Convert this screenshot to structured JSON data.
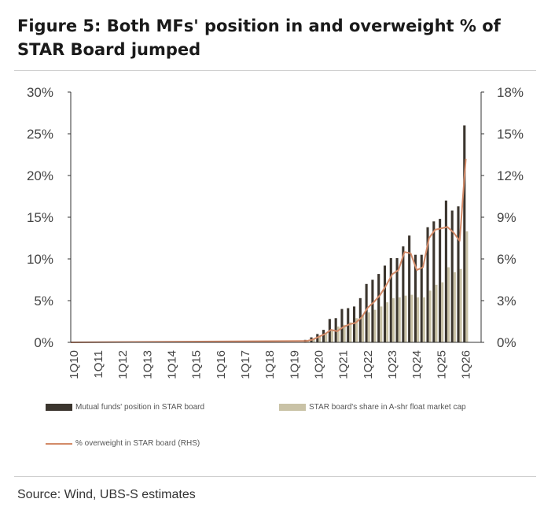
{
  "figure": {
    "title": "Figure 5: Both MFs' position in and overweight % of STAR Board jumped",
    "source": "Source: Wind, UBS-S estimates"
  },
  "colors": {
    "mf_bar": "#3b352e",
    "star_bar": "#c9c2a6",
    "overweight_line": "#d38a68",
    "axis": "#333333"
  },
  "legend": {
    "mf": "Mutual funds' position in STAR board",
    "star": "STAR board's share in A-shr float market cap",
    "overweight": "% overweight in STAR board (RHS)"
  },
  "chart_data": {
    "type": "bar",
    "legend_position": "bottom",
    "grid": false,
    "y_left": {
      "ylim": [
        0,
        30
      ],
      "ticks": [
        "0%",
        "5%",
        "10%",
        "15%",
        "20%",
        "25%",
        "30%"
      ]
    },
    "y_right": {
      "ylim": [
        0,
        18
      ],
      "ticks": [
        "0%",
        "3%",
        "6%",
        "9%",
        "12%",
        "15%",
        "18%"
      ]
    },
    "x_tick_labels": [
      "1Q10",
      "1Q11",
      "1Q12",
      "1Q13",
      "1Q14",
      "1Q15",
      "1Q16",
      "1Q17",
      "1Q18",
      "1Q19",
      "1Q20",
      "1Q21",
      "1Q22",
      "1Q23",
      "1Q24",
      "1Q25",
      "1Q26"
    ],
    "categories": [
      "3Q19",
      "4Q19",
      "1Q20",
      "2Q20",
      "3Q20",
      "4Q20",
      "1Q21",
      "2Q21",
      "3Q21",
      "4Q21",
      "1Q22",
      "2Q22",
      "3Q22",
      "4Q22",
      "1Q23",
      "2Q23",
      "3Q23",
      "4Q23",
      "1Q24",
      "2Q24",
      "3Q24",
      "4Q24",
      "1Q25",
      "2Q25",
      "3Q25",
      "4Q25",
      "1Q26"
    ],
    "series": [
      {
        "name": "Mutual funds' position in STAR board",
        "axis": "left",
        "type": "bar",
        "values": [
          0.3,
          0.6,
          1.0,
          1.5,
          2.8,
          2.9,
          4.0,
          4.1,
          4.3,
          5.3,
          7.0,
          7.5,
          8.2,
          9.2,
          10.1,
          10.1,
          11.5,
          12.8,
          10.5,
          10.5,
          13.8,
          14.5,
          14.8,
          17.0,
          15.8,
          16.3,
          26.0
        ]
      },
      {
        "name": "STAR board's share in A-shr float market cap",
        "axis": "left",
        "type": "bar",
        "values": [
          0.2,
          0.4,
          0.7,
          1.1,
          1.5,
          1.9,
          2.1,
          2.4,
          2.9,
          3.3,
          3.6,
          3.9,
          4.3,
          4.8,
          5.3,
          5.4,
          5.6,
          5.7,
          5.4,
          5.4,
          6.2,
          6.9,
          7.2,
          9.0,
          8.4,
          8.8,
          13.3
        ]
      },
      {
        "name": "% overweight in STAR board (RHS)",
        "axis": "right",
        "type": "line",
        "values": [
          0.1,
          0.2,
          0.4,
          0.6,
          0.9,
          0.8,
          1.1,
          1.3,
          1.4,
          1.8,
          2.5,
          2.9,
          3.4,
          4.1,
          4.9,
          5.2,
          6.5,
          6.4,
          5.2,
          5.4,
          7.5,
          8.1,
          8.2,
          8.3,
          7.9,
          7.3,
          13.2
        ]
      }
    ]
  }
}
